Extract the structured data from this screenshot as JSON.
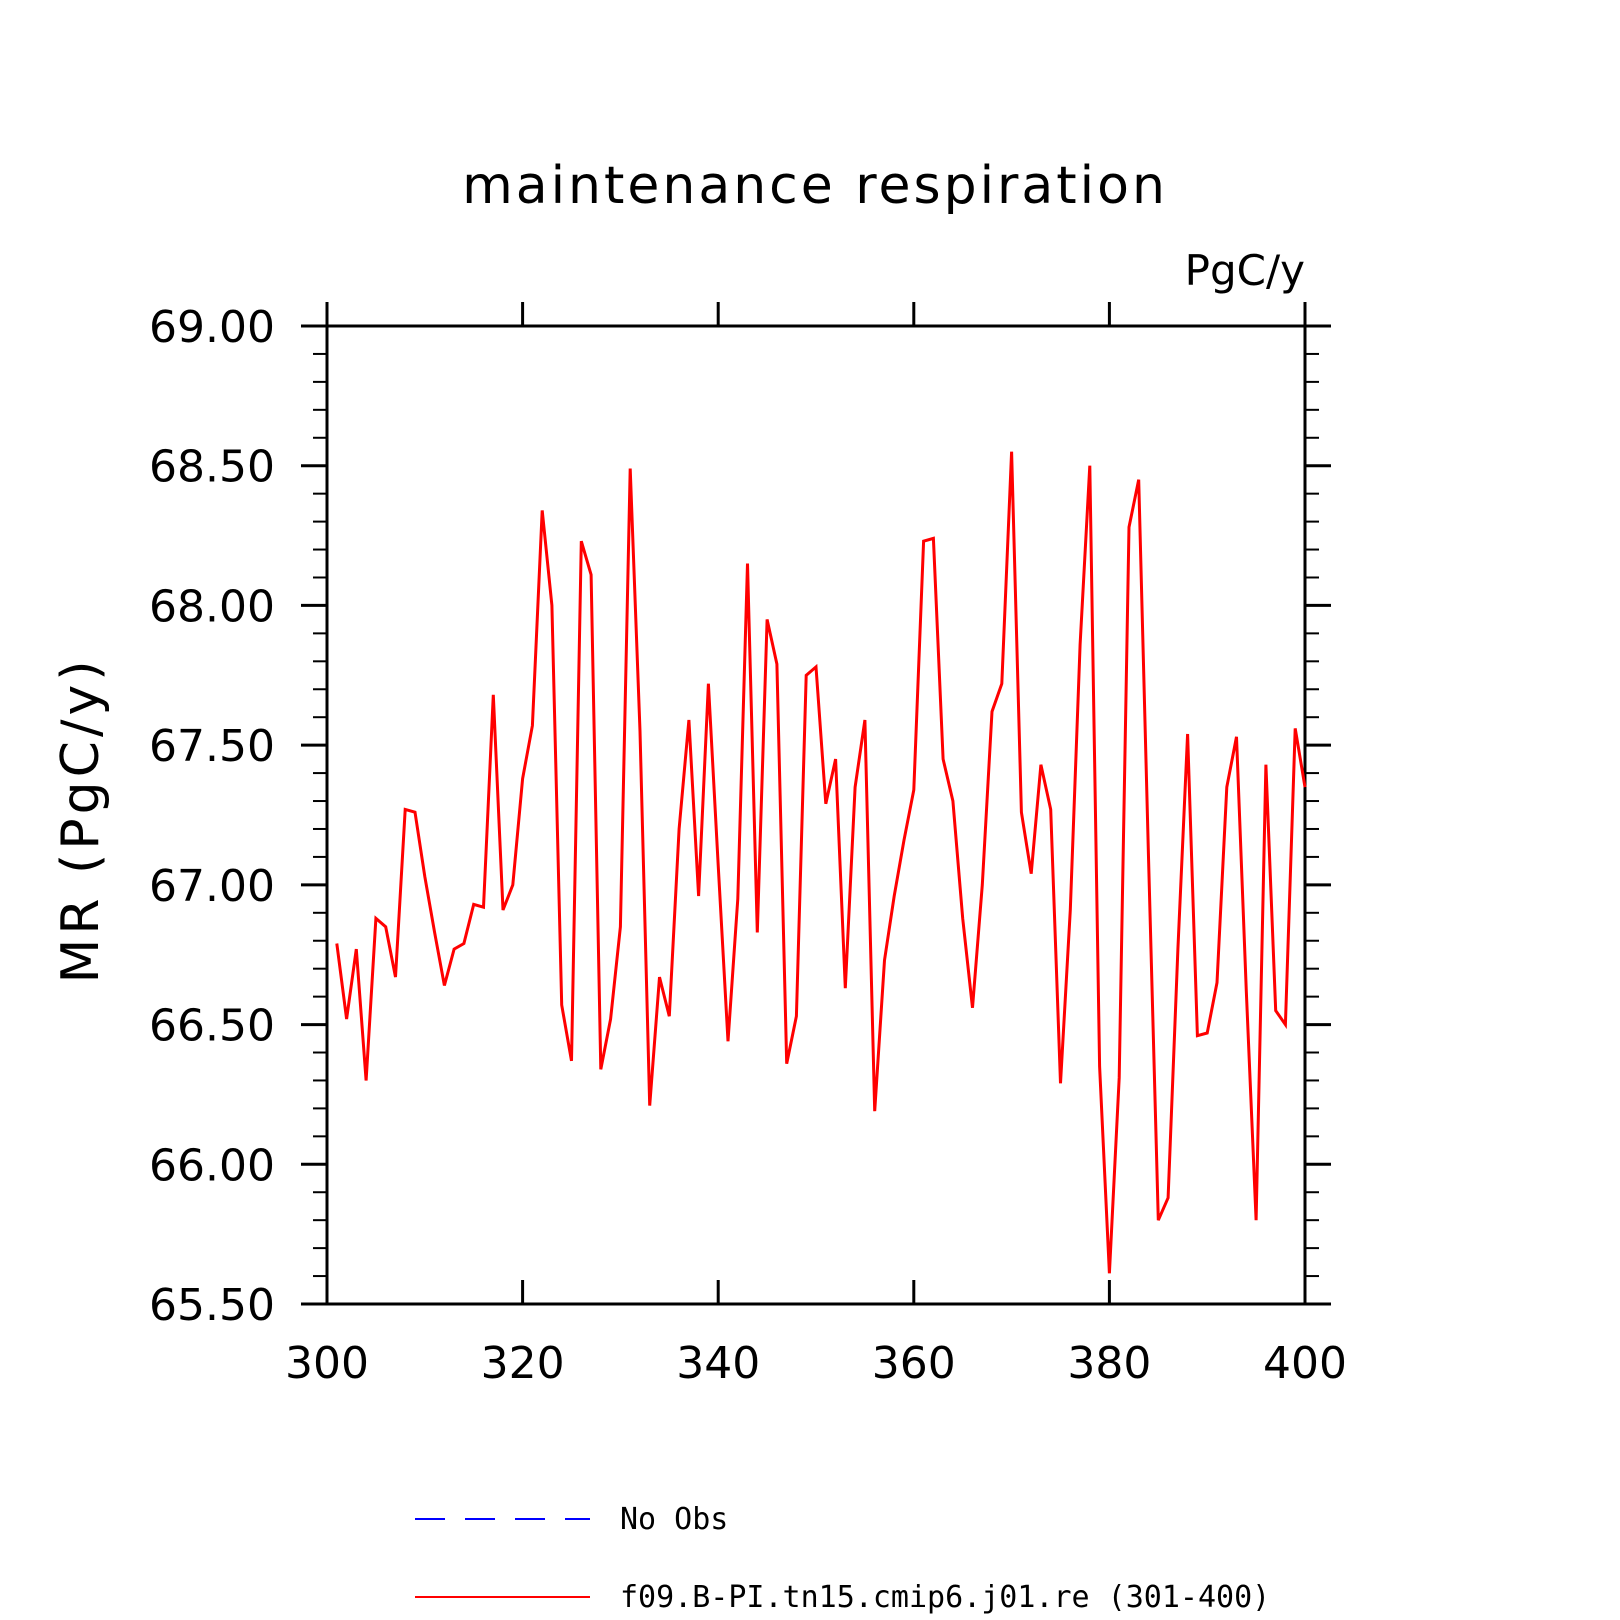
{
  "chart_data": {
    "type": "line",
    "title": "maintenance respiration",
    "units": "PgC/y",
    "ylabel": "MR  (PgC/y)",
    "xlabel": "",
    "xlim": [
      300,
      400
    ],
    "ylim": [
      65.5,
      69.0
    ],
    "xticks": [
      300,
      320,
      340,
      360,
      380,
      400
    ],
    "xtick_labels": [
      "300",
      "320",
      "340",
      "360",
      "380",
      "400"
    ],
    "yticks": [
      65.5,
      66.0,
      66.5,
      67.0,
      67.5,
      68.0,
      68.5,
      69.0
    ],
    "ytick_labels": [
      "65.50",
      "66.00",
      "66.50",
      "67.00",
      "67.50",
      "68.00",
      "68.50",
      "69.00"
    ],
    "grid": false,
    "legend_placement": "bottom",
    "legend": [
      {
        "name": "No Obs",
        "color": "#0000ff",
        "style": "dashed"
      },
      {
        "name": "f09.B-PI.tn15.cmip6.j01.re (301-400)",
        "color": "#ff0000",
        "style": "solid"
      }
    ],
    "series": [
      {
        "name": "f09.B-PI.tn15.cmip6.j01.re (301-400)",
        "color": "#ff0000",
        "x": [
          301,
          302,
          303,
          304,
          305,
          306,
          307,
          308,
          309,
          310,
          311,
          312,
          313,
          314,
          315,
          316,
          317,
          318,
          319,
          320,
          321,
          322,
          323,
          324,
          325,
          326,
          327,
          328,
          329,
          330,
          331,
          332,
          333,
          334,
          335,
          336,
          337,
          338,
          339,
          340,
          341,
          342,
          343,
          344,
          345,
          346,
          347,
          348,
          349,
          350,
          351,
          352,
          353,
          354,
          355,
          356,
          357,
          358,
          359,
          360,
          361,
          362,
          363,
          364,
          365,
          366,
          367,
          368,
          369,
          370,
          371,
          372,
          373,
          374,
          375,
          376,
          377,
          378,
          379,
          380,
          381,
          382,
          383,
          384,
          385,
          386,
          387,
          388,
          389,
          390,
          391,
          392,
          393,
          394,
          395,
          396,
          397,
          398,
          399,
          400
        ],
        "values": [
          66.79,
          66.52,
          66.77,
          66.3,
          66.88,
          66.85,
          66.67,
          67.27,
          67.26,
          67.03,
          66.83,
          66.64,
          66.77,
          66.79,
          66.93,
          66.92,
          67.68,
          66.91,
          67.0,
          67.38,
          67.57,
          68.34,
          68.0,
          66.57,
          66.37,
          68.23,
          68.11,
          66.34,
          66.52,
          66.85,
          68.49,
          67.55,
          66.21,
          66.67,
          66.53,
          67.2,
          67.59,
          66.96,
          67.72,
          67.07,
          66.44,
          66.95,
          68.15,
          66.83,
          67.95,
          67.79,
          66.36,
          66.53,
          67.75,
          67.78,
          67.29,
          67.45,
          66.63,
          67.35,
          67.59,
          66.19,
          66.73,
          66.96,
          67.16,
          67.34,
          68.23,
          68.24,
          67.45,
          67.3,
          66.88,
          66.56,
          67.0,
          67.62,
          67.72,
          68.55,
          67.26,
          67.04,
          67.43,
          67.27,
          66.29,
          66.91,
          67.86,
          68.5,
          66.35,
          65.61,
          66.31,
          68.28,
          68.45,
          67.1,
          65.8,
          65.88,
          66.77,
          67.54,
          66.46,
          66.47,
          66.65,
          67.35,
          67.53,
          66.62,
          65.8,
          67.43,
          66.55,
          66.5,
          67.56,
          67.35
        ]
      }
    ]
  }
}
